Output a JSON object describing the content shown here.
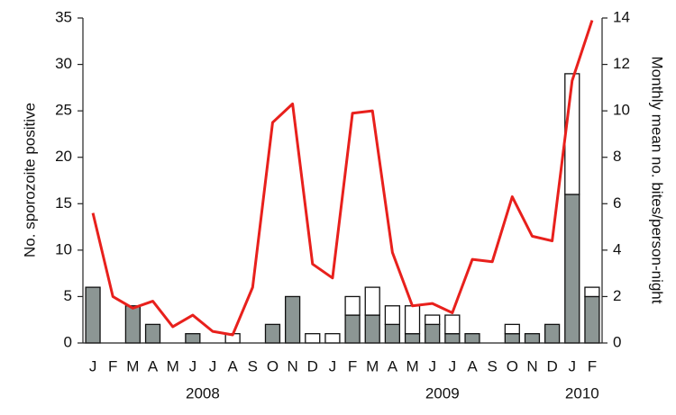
{
  "chart_data": {
    "type": "bar",
    "categories": [
      "J",
      "F",
      "M",
      "A",
      "M",
      "J",
      "J",
      "A",
      "S",
      "O",
      "N",
      "D",
      "J",
      "F",
      "M",
      "A",
      "M",
      "J",
      "J",
      "A",
      "S",
      "O",
      "N",
      "D",
      "J",
      "F"
    ],
    "groups": [
      {
        "label": "2008",
        "size": 12
      },
      {
        "label": "2009",
        "size": 12
      },
      {
        "label": "2010",
        "size": 2
      }
    ],
    "series": [
      {
        "kind": "bar",
        "color": "#8c9694",
        "values": [
          6,
          0,
          4,
          2,
          0,
          1,
          0,
          0,
          0,
          2,
          5,
          0,
          0,
          3,
          3,
          2,
          1,
          2,
          1,
          1,
          0,
          1,
          1,
          2,
          16,
          5
        ]
      },
      {
        "kind": "bar",
        "color": "#ffffff",
        "values": [
          0,
          0,
          0,
          0,
          0,
          0,
          0,
          1,
          0,
          0,
          0,
          1,
          1,
          2,
          3,
          2,
          3,
          1,
          2,
          0,
          0,
          1,
          0,
          0,
          13,
          1
        ]
      },
      {
        "kind": "line",
        "axis": "y2",
        "color": "#e8201c",
        "values": [
          5.6,
          2.0,
          1.5,
          1.8,
          0.7,
          1.2,
          0.5,
          0.35,
          2.4,
          9.5,
          10.3,
          3.4,
          2.8,
          9.9,
          10.0,
          3.9,
          1.6,
          1.7,
          1.3,
          3.6,
          3.5,
          6.3,
          4.6,
          4.4,
          11.3,
          13.9
        ]
      }
    ],
    "ylabel": "No. sporozoite positive",
    "y2label": "Monthly mean no. bites/person-night",
    "ylim": [
      0,
      35
    ],
    "yticks": [
      0,
      5,
      10,
      15,
      20,
      25,
      30,
      35
    ],
    "y2lim": [
      0,
      14
    ],
    "y2ticks": [
      0,
      2,
      4,
      6,
      8,
      10,
      12,
      14
    ]
  }
}
